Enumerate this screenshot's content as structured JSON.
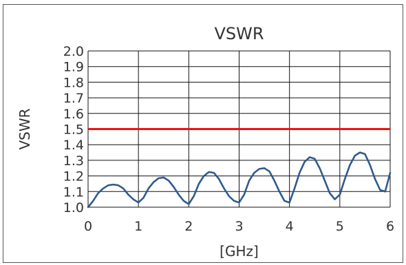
{
  "chart_data": {
    "type": "line",
    "title": "VSWR",
    "xlabel": "[GHz]",
    "ylabel": "VSWR",
    "xlim": [
      0,
      6
    ],
    "ylim": [
      1.0,
      2.0
    ],
    "x_ticks": [
      "0",
      "1",
      "2",
      "3",
      "4",
      "5",
      "6"
    ],
    "y_ticks": [
      "1.0",
      "1.1",
      "1.2",
      "1.3",
      "1.4",
      "1.5",
      "1.6",
      "1.7",
      "1.8",
      "1.9",
      "2.0"
    ],
    "grid": true,
    "limit_line": {
      "y": 1.5,
      "color": "#ee1111"
    },
    "series": [
      {
        "color": "#2e5a8e",
        "x": [
          0,
          0.1,
          0.2,
          0.3,
          0.4,
          0.5,
          0.6,
          0.7,
          0.8,
          0.9,
          1.0,
          1.1,
          1.2,
          1.3,
          1.4,
          1.5,
          1.6,
          1.7,
          1.8,
          1.9,
          2.0,
          2.1,
          2.2,
          2.3,
          2.4,
          2.5,
          2.6,
          2.7,
          2.8,
          2.9,
          3.0,
          3.1,
          3.2,
          3.3,
          3.4,
          3.5,
          3.6,
          3.7,
          3.8,
          3.9,
          4.0,
          4.1,
          4.2,
          4.3,
          4.4,
          4.5,
          4.6,
          4.7,
          4.8,
          4.9,
          5.0,
          5.1,
          5.2,
          5.3,
          5.4,
          5.5,
          5.6,
          5.7,
          5.8,
          5.9,
          6.0
        ],
        "y": [
          1.0,
          1.04,
          1.09,
          1.12,
          1.14,
          1.145,
          1.14,
          1.12,
          1.08,
          1.05,
          1.03,
          1.06,
          1.12,
          1.16,
          1.185,
          1.19,
          1.17,
          1.13,
          1.08,
          1.04,
          1.02,
          1.07,
          1.15,
          1.2,
          1.225,
          1.22,
          1.18,
          1.12,
          1.07,
          1.04,
          1.03,
          1.08,
          1.17,
          1.22,
          1.245,
          1.25,
          1.23,
          1.17,
          1.1,
          1.04,
          1.03,
          1.12,
          1.22,
          1.29,
          1.32,
          1.31,
          1.25,
          1.17,
          1.09,
          1.05,
          1.08,
          1.18,
          1.27,
          1.33,
          1.35,
          1.34,
          1.27,
          1.18,
          1.11,
          1.1,
          1.22
        ]
      }
    ]
  }
}
